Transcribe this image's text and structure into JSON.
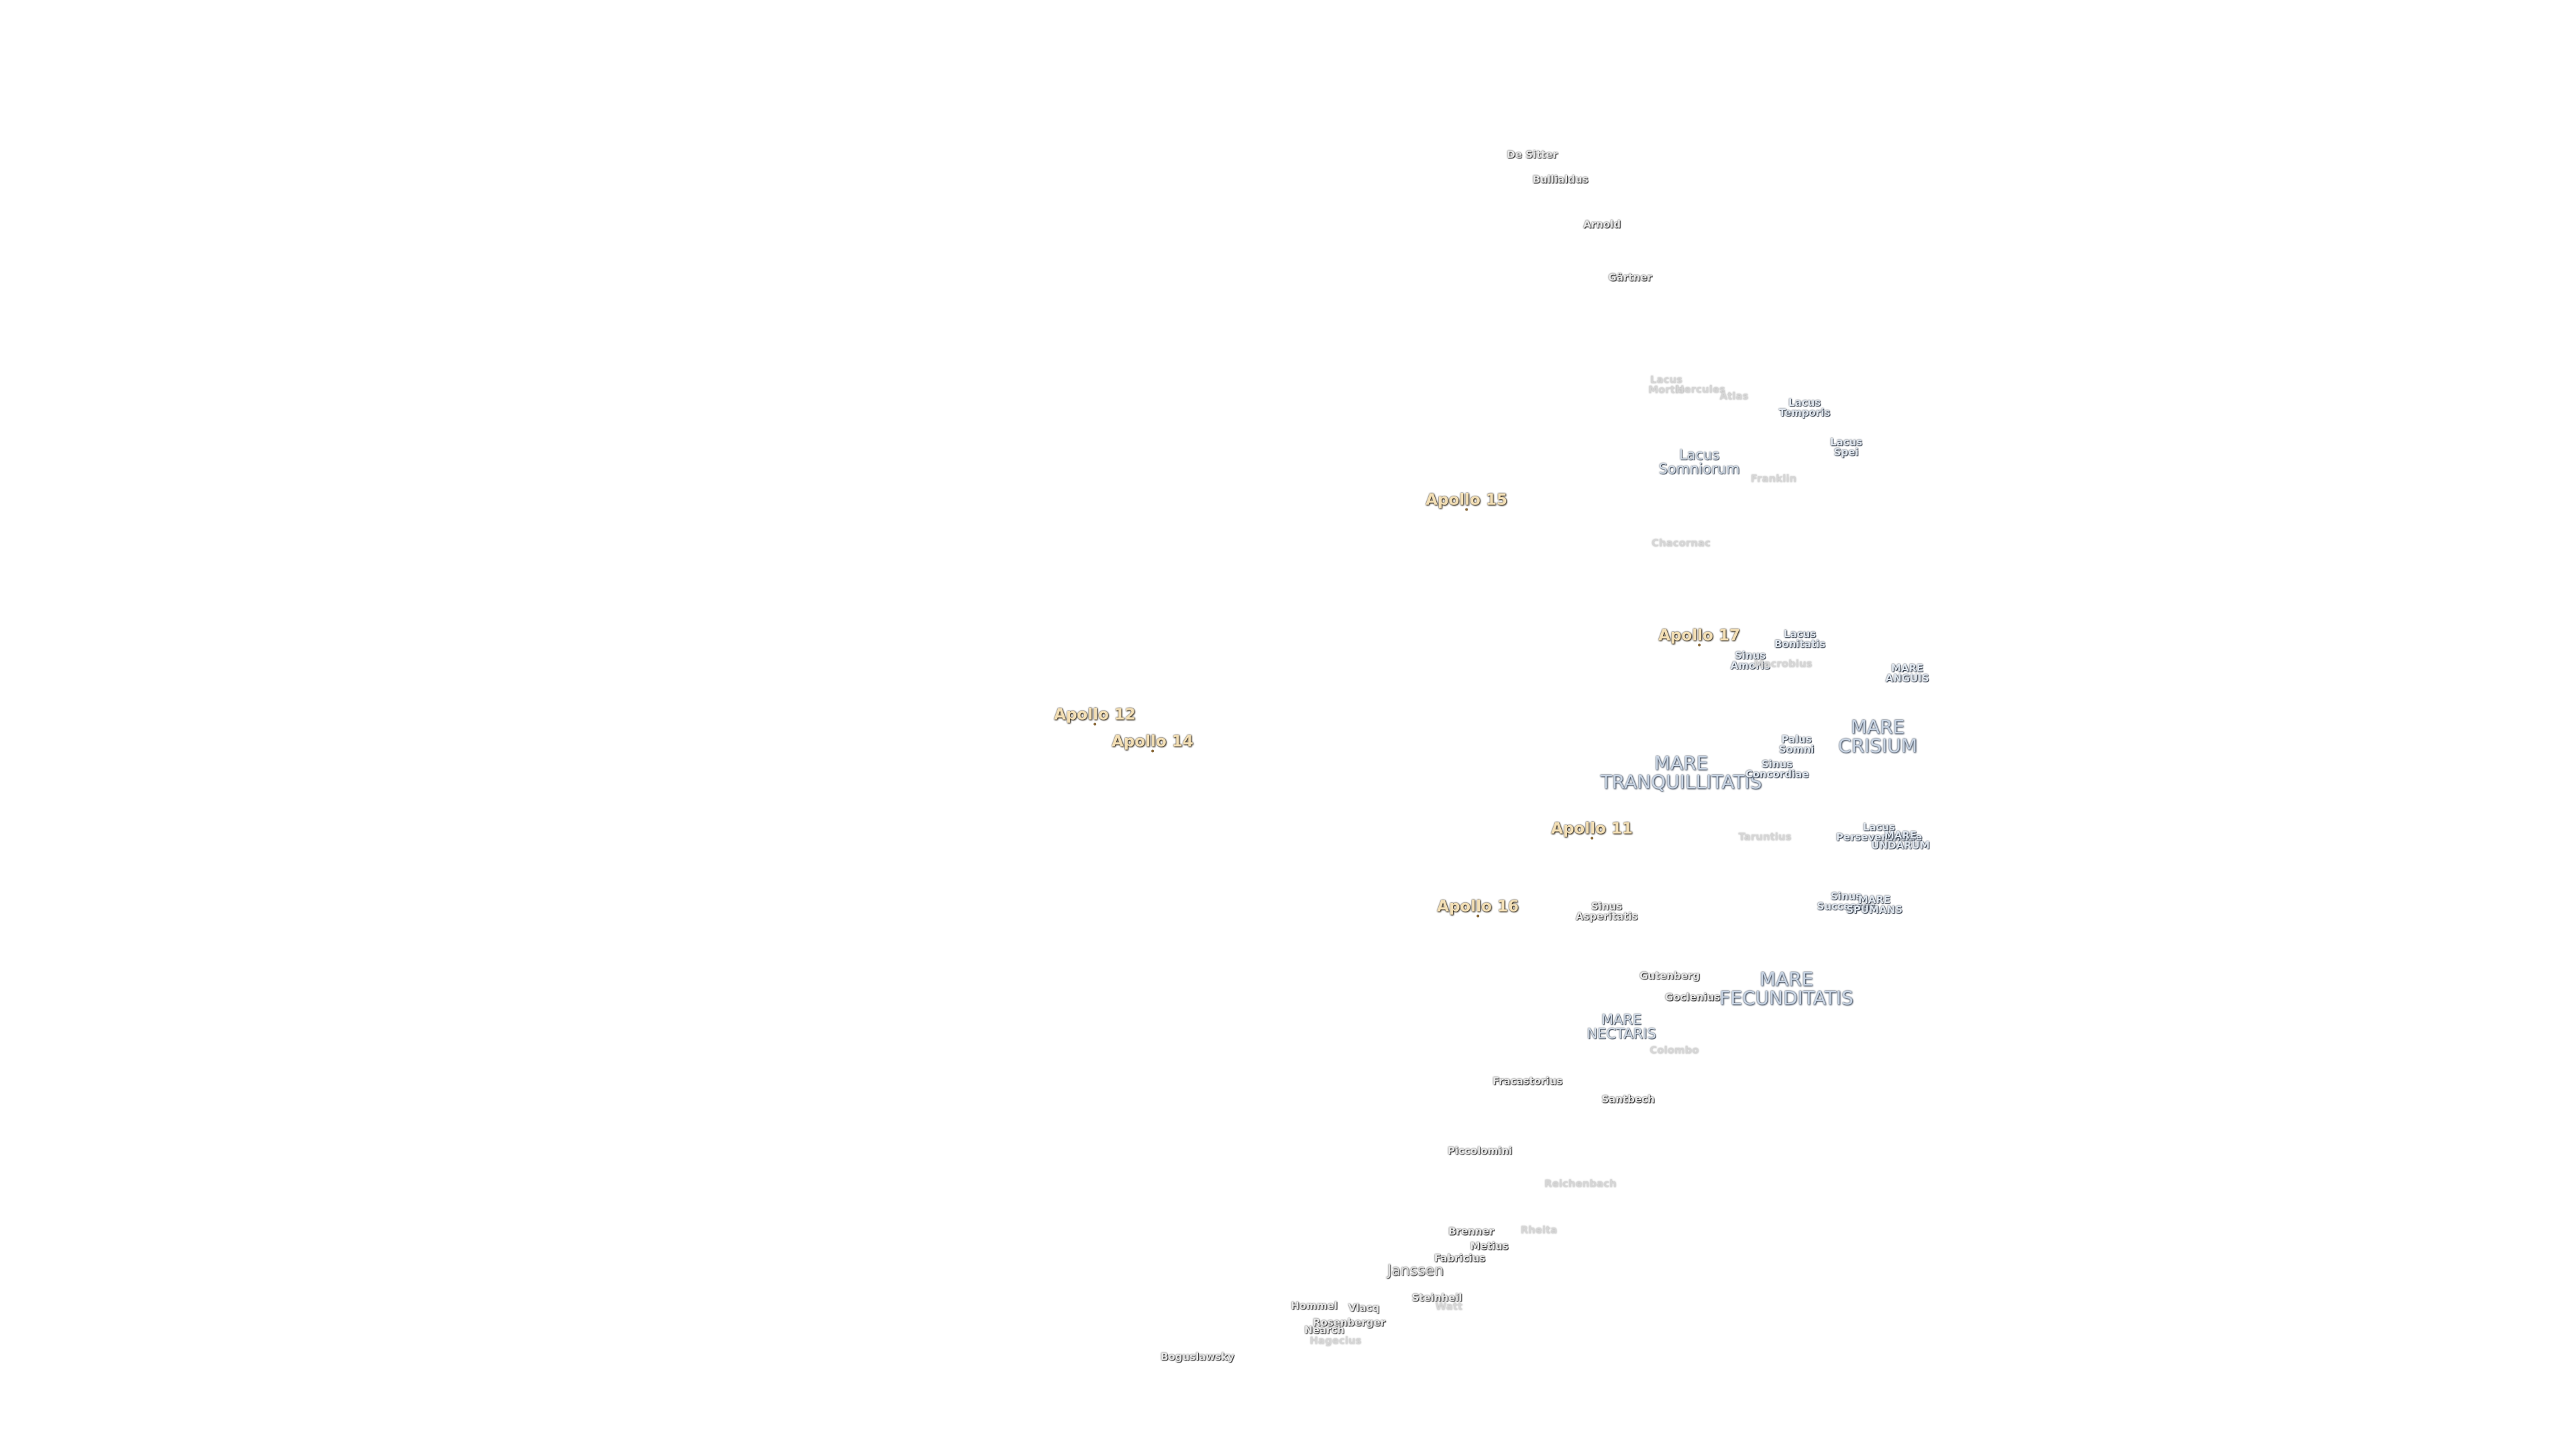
{
  "labels": [
    "De Sitter",
    "Bullialdus",
    "Arnold",
    "Gärtner",
    "Lacus Mortis",
    "Hercules",
    "Atlas",
    "Lacus Temporis",
    "Lacus Spei",
    "Lacus Somniorum",
    "Franklin",
    "Apollo 15",
    "Chacornac",
    "Apollo 17",
    "Lacus Bonitatis",
    "Sinus Amoris",
    "Macrobius",
    "MARE ANGUIS",
    "Apollo 12",
    "Apollo 14",
    "MARE CRISIUM",
    "Palus Somni",
    "MARE TRANQUILLITATIS",
    "Sinus Concordiae",
    "Apollo 11",
    "Taruntius",
    "Lacus Perseverantiae",
    "MARE UNDARUM",
    "Apollo 16",
    "Sinus Asperitatis",
    "Sinus Successus",
    "MARE SPUMANS",
    "Gutenberg",
    "MARE FECUNDITATIS",
    "Goclenius",
    "MARE NECTARIS",
    "Colombo",
    "Fracastorius",
    "Santbech",
    "Piccolomini",
    "Reichenbach",
    "Brenner",
    "Rheita",
    "Metius",
    "Fabricius",
    "Janssen",
    "Steinheil",
    "Watt",
    "Hommel",
    "Vlacq",
    "Rosenberger",
    "Nearch",
    "Hagecius",
    "Boguslawsky"
  ]
}
